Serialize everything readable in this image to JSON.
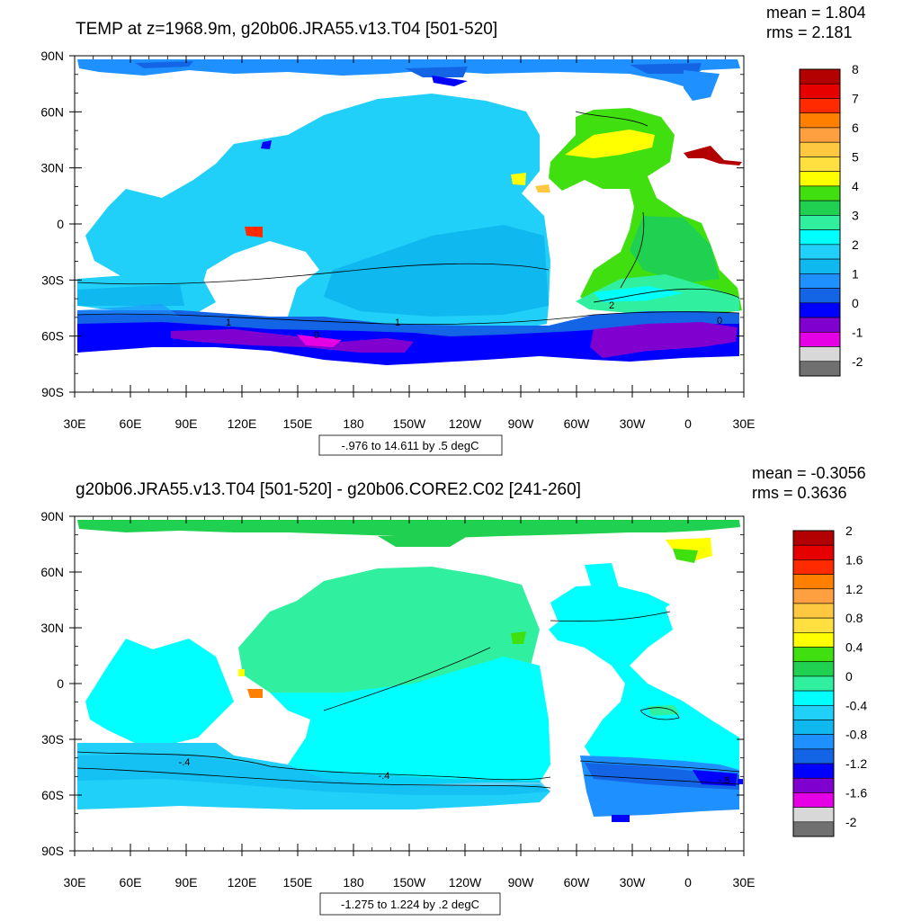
{
  "panels": [
    {
      "title": "TEMP at z=1968.9m, g20b06.JRA55.v13.T04 [501-520]",
      "mean": "mean = 1.804",
      "rms": "rms = 2.181",
      "lat_labels": [
        "90N",
        "60N",
        "30N",
        "0",
        "30S",
        "60S",
        "90S"
      ],
      "lon_labels": [
        "30E",
        "60E",
        "90E",
        "120E",
        "150E",
        "180",
        "150W",
        "120W",
        "90W",
        "60W",
        "30W",
        "0",
        "30E"
      ],
      "info": "-.976 to 14.611 by .5 degC",
      "colorbar_labels": [
        "8",
        "7",
        "6",
        "5",
        "4",
        "3",
        "2",
        "1",
        "0",
        "-1",
        "-2"
      ],
      "colorbar_colors": [
        "#b30000",
        "#e60000",
        "#ff2a00",
        "#ff8000",
        "#ffa040",
        "#ffc840",
        "#ffe040",
        "#ffff00",
        "#40e010",
        "#20d050",
        "#30f0a0",
        "#00ffff",
        "#20d0f8",
        "#10b8f0",
        "#1e90ff",
        "#1464e6",
        "#0000ff",
        "#8000d0",
        "#e600e6",
        "#d8d8d8",
        "#707070"
      ],
      "contour_labels": [
        "2",
        "1",
        "1",
        "0",
        "0"
      ]
    },
    {
      "title": "g20b06.JRA55.v13.T04 [501-520] - g20b06.CORE2.C02 [241-260]",
      "mean": "mean = -0.3056",
      "rms": "rms = 0.3636",
      "lat_labels": [
        "90N",
        "60N",
        "30N",
        "0",
        "30S",
        "60S",
        "90S"
      ],
      "lon_labels": [
        "30E",
        "60E",
        "90E",
        "120E",
        "150E",
        "180",
        "150W",
        "120W",
        "90W",
        "60W",
        "30W",
        "0",
        "30E"
      ],
      "info": "-1.275 to 1.224 by .2 degC",
      "colorbar_labels": [
        "2",
        "1.6",
        "1.2",
        "0.8",
        "0.4",
        "0",
        "-0.4",
        "-0.8",
        "-1.2",
        "-1.6",
        "-2"
      ],
      "colorbar_colors": [
        "#b30000",
        "#e60000",
        "#ff2a00",
        "#ff8000",
        "#ffa040",
        "#ffc840",
        "#ffe040",
        "#ffff00",
        "#40e010",
        "#20d050",
        "#30f0a0",
        "#00ffff",
        "#20d0f8",
        "#10b8f0",
        "#1e90ff",
        "#1464e6",
        "#0000ff",
        "#8000d0",
        "#e600e6",
        "#d8d8d8",
        "#707070"
      ],
      "contour_labels": [
        "-.4",
        "-.4",
        "-.8"
      ]
    }
  ]
}
